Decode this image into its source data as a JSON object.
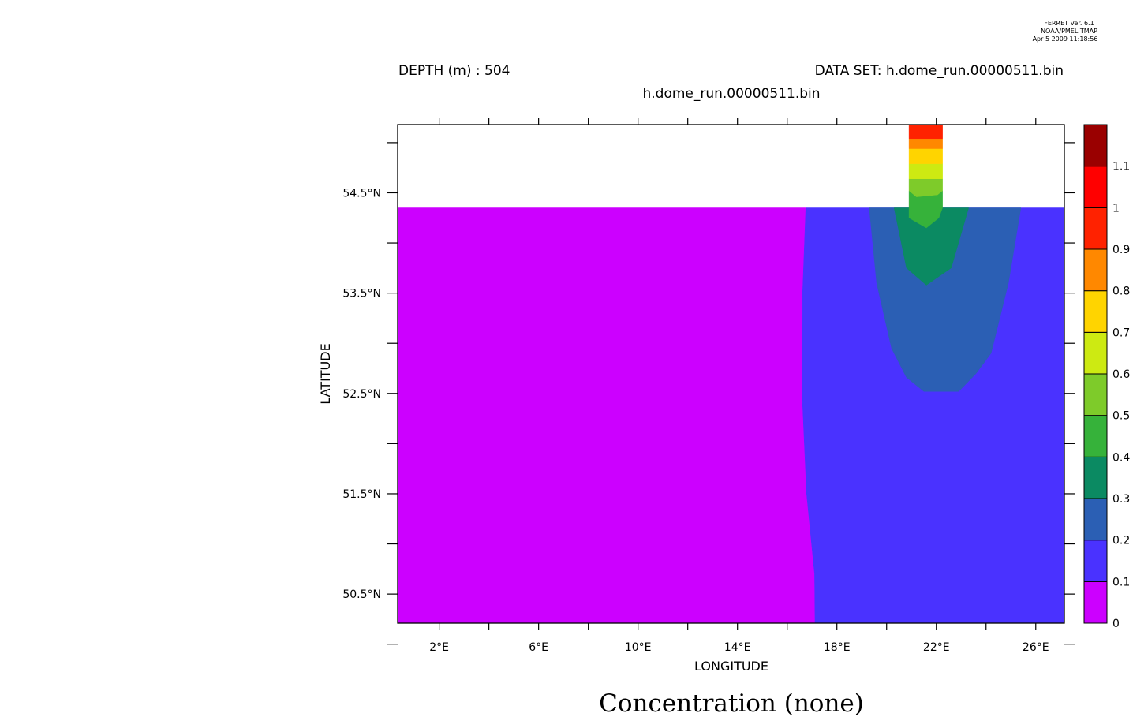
{
  "stamp": {
    "line1": "FERRET Ver. 6.1",
    "line2": "NOAA/PMEL TMAP",
    "line3": "Apr  5 2009 11:18:56"
  },
  "header": {
    "depth": "DEPTH (m) : 504",
    "dataset": "DATA SET: h.dome_run.00000511.bin",
    "subtitle": "h.dome_run.00000511.bin"
  },
  "chart_data": {
    "type": "heatmap",
    "title": "Concentration (none)",
    "xlabel": "LONGITUDE",
    "ylabel": "LATITUDE",
    "x_ticks": [
      {
        "value": 2,
        "label": "2°E"
      },
      {
        "value": 6,
        "label": "6°E"
      },
      {
        "value": 10,
        "label": "10°E"
      },
      {
        "value": 14,
        "label": "14°E"
      },
      {
        "value": 18,
        "label": "18°E"
      },
      {
        "value": 22,
        "label": "22°E"
      },
      {
        "value": 26,
        "label": "26°E"
      }
    ],
    "x_minor_ticks": [
      4,
      8,
      12,
      16,
      20,
      24
    ],
    "y_ticks": [
      {
        "value": 54.5,
        "label": "54.5°N"
      },
      {
        "value": 53.5,
        "label": "53.5°N"
      },
      {
        "value": 52.5,
        "label": "52.5°N"
      },
      {
        "value": 51.5,
        "label": "51.5°N"
      },
      {
        "value": 50.5,
        "label": "50.5°N"
      }
    ],
    "y_minor_ticks": [
      50,
      51,
      52,
      53,
      54,
      55
    ],
    "xlim": [
      0.33,
      27.15
    ],
    "ylim": [
      50.21,
      55.18
    ],
    "data_top_lat": 54.35,
    "colorbar": {
      "levels": [
        0,
        0.1,
        0.2,
        0.3,
        0.4,
        0.5,
        0.6,
        0.7,
        0.8,
        0.9,
        1,
        1.1
      ],
      "labels": [
        "0",
        "0.1",
        "0.2",
        "0.3",
        "0.4",
        "0.5",
        "0.6",
        "0.7",
        "0.8",
        "0.9",
        "1",
        "1.1"
      ],
      "colors": [
        "#cc00ff",
        "#4a32ff",
        "#2b5fb4",
        "#0b8a62",
        "#36b23a",
        "#7ecb2a",
        "#cdea12",
        "#ffd400",
        "#ff8800",
        "#ff2200",
        "#ff0000",
        "#9a0000"
      ]
    },
    "regions": [
      {
        "level": 0,
        "name": "magenta-region",
        "points": [
          [
            0.33,
            50.21
          ],
          [
            0.33,
            54.35
          ],
          [
            16.75,
            54.35
          ],
          [
            16.62,
            53.5
          ],
          [
            16.6,
            52.5
          ],
          [
            16.78,
            51.5
          ],
          [
            17.1,
            50.7
          ],
          [
            17.12,
            50.21
          ]
        ]
      },
      {
        "level": 1,
        "name": "blue-region",
        "points": [
          [
            16.75,
            54.35
          ],
          [
            27.15,
            54.35
          ],
          [
            27.15,
            50.21
          ],
          [
            17.12,
            50.21
          ],
          [
            17.1,
            50.7
          ],
          [
            16.78,
            51.5
          ],
          [
            16.6,
            52.5
          ],
          [
            16.62,
            53.5
          ]
        ]
      },
      {
        "level": 2,
        "name": "steel-blue-region",
        "points": [
          [
            19.3,
            54.35
          ],
          [
            25.4,
            54.35
          ],
          [
            24.9,
            53.6
          ],
          [
            24.2,
            52.9
          ],
          [
            23.6,
            52.7
          ],
          [
            22.9,
            52.52
          ],
          [
            21.5,
            52.52
          ],
          [
            20.8,
            52.66
          ],
          [
            20.2,
            52.95
          ],
          [
            19.6,
            53.6
          ]
        ]
      },
      {
        "level": 3,
        "name": "teal-region",
        "points": [
          [
            20.3,
            54.35
          ],
          [
            23.3,
            54.35
          ],
          [
            22.6,
            53.75
          ],
          [
            21.6,
            53.58
          ],
          [
            20.8,
            53.75
          ]
        ]
      },
      {
        "level": 4,
        "name": "green-region",
        "points": [
          [
            20.9,
            54.52
          ],
          [
            22.25,
            54.52
          ],
          [
            22.25,
            54.35
          ],
          [
            22.1,
            54.25
          ],
          [
            21.6,
            54.15
          ],
          [
            20.9,
            54.25
          ]
        ]
      },
      {
        "level": 5,
        "name": "light-green-region",
        "points": [
          [
            20.9,
            54.64
          ],
          [
            22.25,
            54.64
          ],
          [
            22.25,
            54.52
          ],
          [
            22.05,
            54.48
          ],
          [
            21.2,
            54.46
          ],
          [
            20.9,
            54.52
          ]
        ]
      },
      {
        "level": 6,
        "name": "yellow-green-region",
        "points": [
          [
            20.9,
            54.79
          ],
          [
            22.25,
            54.79
          ],
          [
            22.25,
            54.64
          ],
          [
            20.9,
            54.64
          ]
        ]
      },
      {
        "level": 7,
        "name": "yellow-region",
        "points": [
          [
            20.9,
            54.94
          ],
          [
            22.25,
            54.94
          ],
          [
            22.25,
            54.79
          ],
          [
            20.9,
            54.79
          ]
        ]
      },
      {
        "level": 8,
        "name": "orange-region",
        "points": [
          [
            20.9,
            55.04
          ],
          [
            22.25,
            55.04
          ],
          [
            22.25,
            54.94
          ],
          [
            20.9,
            54.94
          ]
        ]
      },
      {
        "level": 9,
        "name": "red-region",
        "points": [
          [
            20.9,
            55.18
          ],
          [
            22.25,
            55.18
          ],
          [
            22.25,
            55.04
          ],
          [
            20.9,
            55.04
          ]
        ]
      }
    ]
  }
}
